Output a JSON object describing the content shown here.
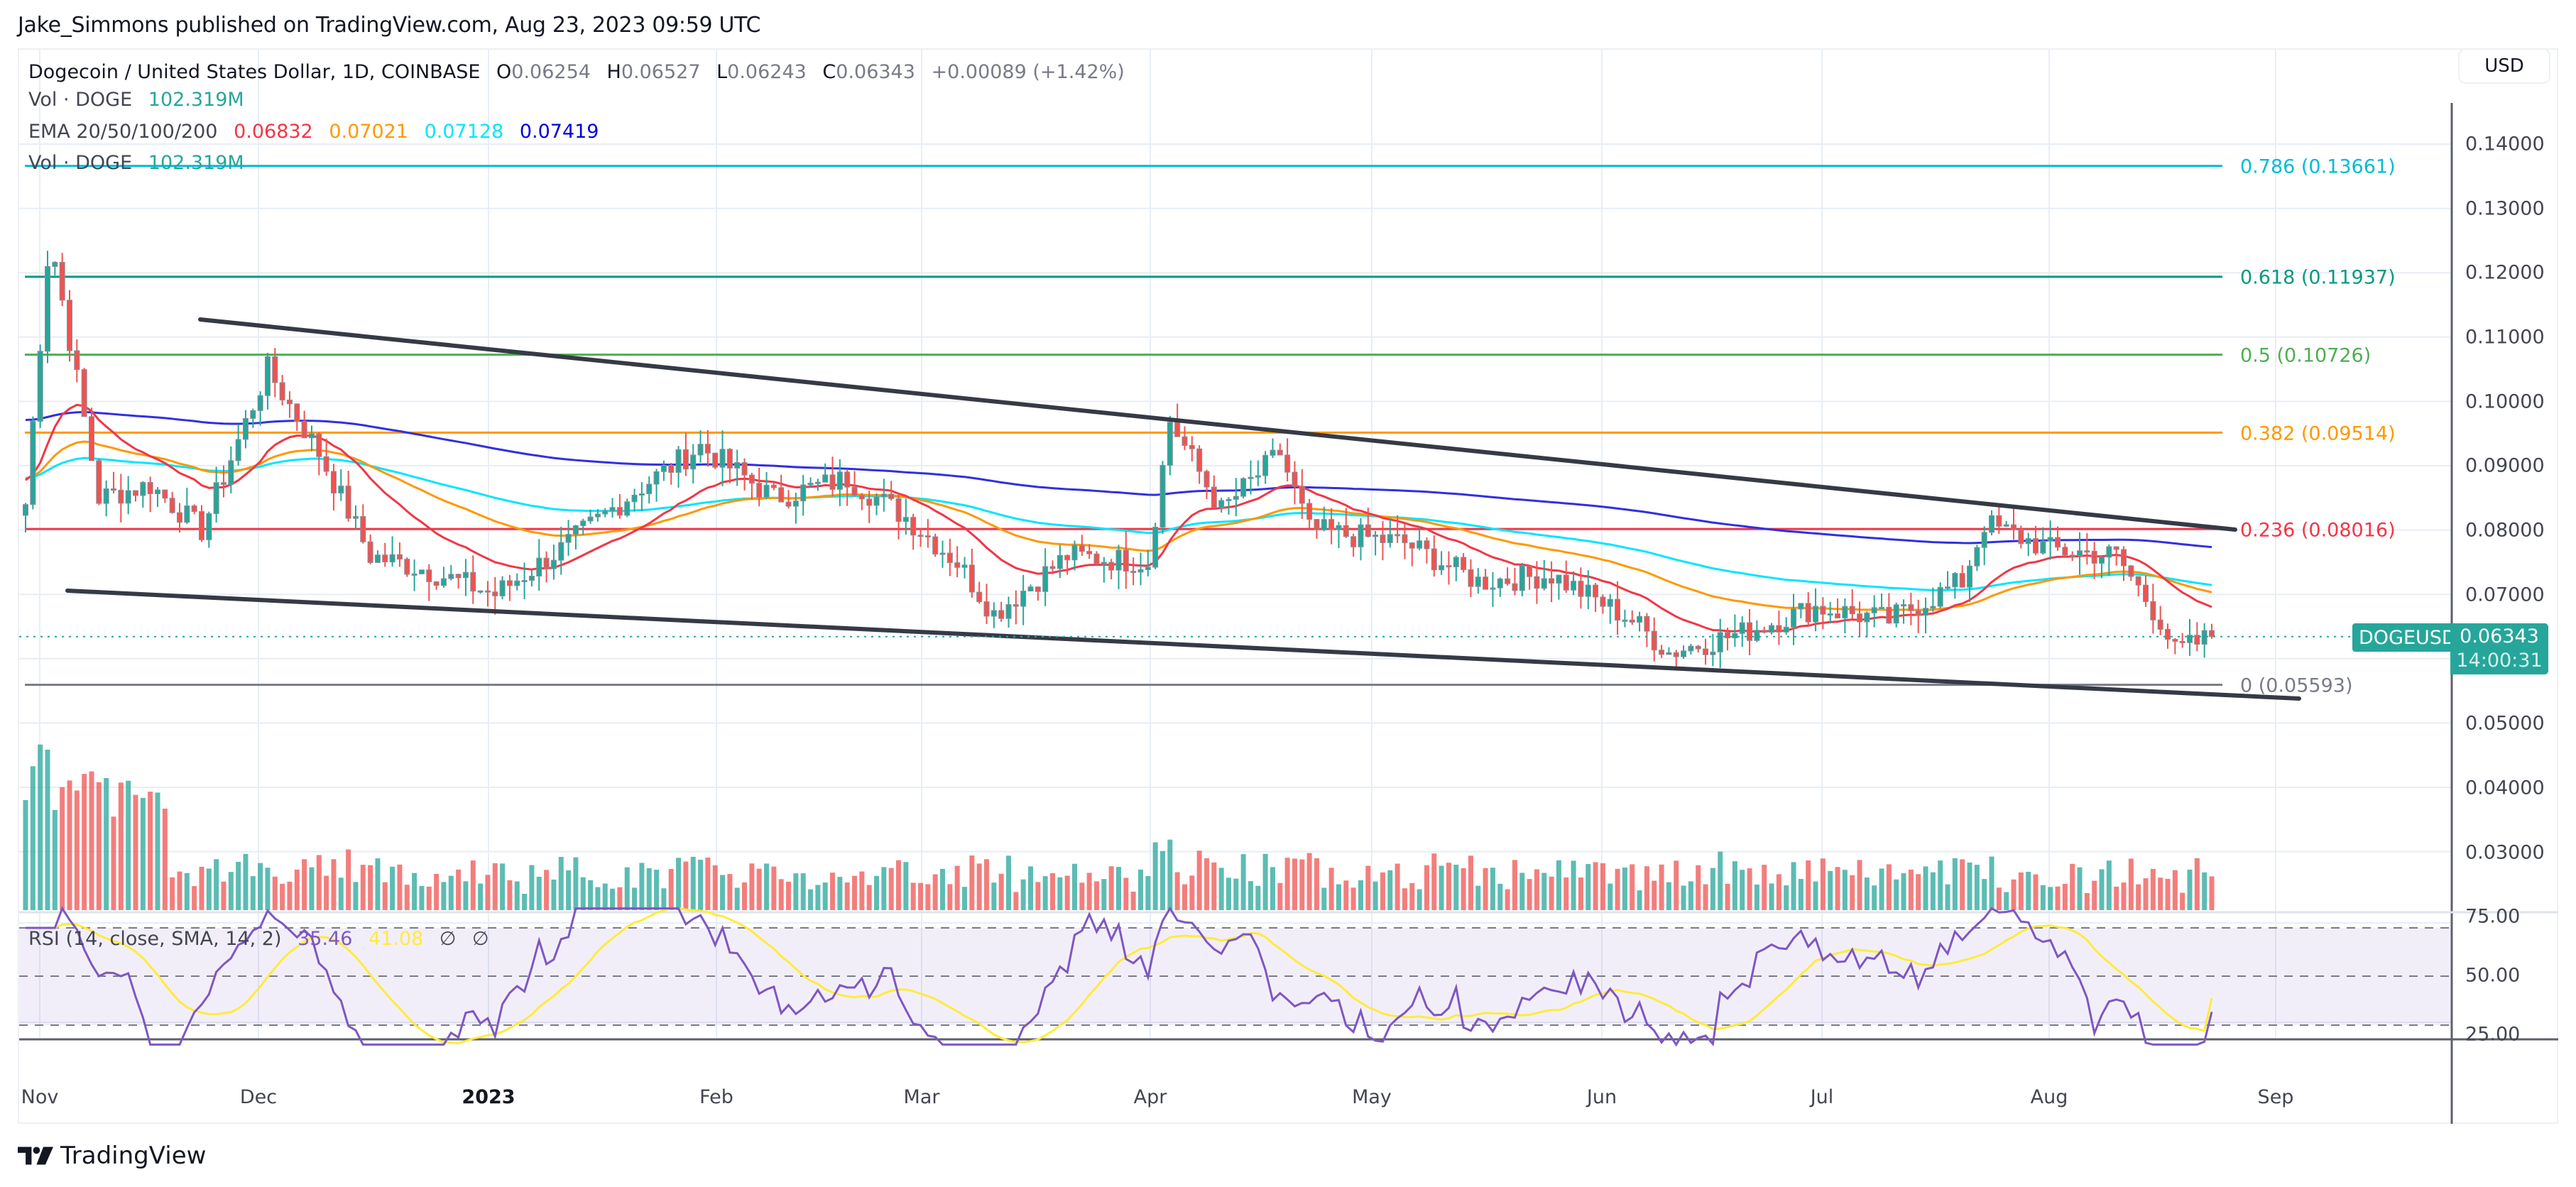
{
  "header": {
    "published": "Jake_Simmons published on TradingView.com, Aug 23, 2023 09:59 UTC"
  },
  "legend": {
    "symbol": "Dogecoin / United States Dollar, 1D, COINBASE",
    "ohlc": {
      "o_label": "O",
      "o": "0.06254",
      "h_label": "H",
      "h": "0.06527",
      "l_label": "L",
      "l": "0.06243",
      "c_label": "C",
      "c": "0.06343",
      "change": "+0.00089 (+1.42%)"
    },
    "vol1": {
      "label": "Vol · DOGE",
      "value": "102.319M"
    },
    "ema": {
      "label": "EMA 20/50/100/200",
      "v20": "0.06832",
      "v50": "0.07021",
      "v100": "0.07128",
      "v200": "0.07419"
    },
    "vol2": {
      "label": "Vol · DOGE",
      "value": "102.319M"
    },
    "rsi": {
      "label": "RSI (14, close, SMA, 14, 2)",
      "rsi": "35.46",
      "sma": "41.08",
      "n1": "∅",
      "n2": "∅"
    }
  },
  "currency_button": "USD",
  "price_axis": {
    "ticks": [
      "0.14000",
      "0.13000",
      "0.12000",
      "0.11000",
      "0.10000",
      "0.09000",
      "0.08000",
      "0.07000",
      "0.05000",
      "0.04000",
      "0.03000"
    ],
    "rsi_ticks": [
      "75.00",
      "50.00",
      "25.00"
    ]
  },
  "last_price": {
    "symbol": "DOGEUSD",
    "price": "0.06343",
    "countdown": "14:00:31"
  },
  "time_axis": {
    "labels": [
      {
        "text": "Nov",
        "bold": false
      },
      {
        "text": "Dec",
        "bold": false
      },
      {
        "text": "2023",
        "bold": true
      },
      {
        "text": "Feb",
        "bold": false
      },
      {
        "text": "Mar",
        "bold": false
      },
      {
        "text": "Apr",
        "bold": false
      },
      {
        "text": "May",
        "bold": false
      },
      {
        "text": "Jun",
        "bold": false
      },
      {
        "text": "Jul",
        "bold": false
      },
      {
        "text": "Aug",
        "bold": false
      },
      {
        "text": "Sep",
        "bold": false
      }
    ]
  },
  "fib_levels": [
    {
      "label": "0.786 (0.13661)",
      "level": 0.786,
      "price": 0.13661,
      "color": "#00bcd4"
    },
    {
      "label": "0.618 (0.11937)",
      "level": 0.618,
      "price": 0.11937,
      "color": "#089981"
    },
    {
      "label": "0.5 (0.10726)",
      "level": 0.5,
      "price": 0.10726,
      "color": "#4caf50"
    },
    {
      "label": "0.382 (0.09514)",
      "level": 0.382,
      "price": 0.09514,
      "color": "#ff9800"
    },
    {
      "label": "0.236 (0.08016)",
      "level": 0.236,
      "price": 0.08016,
      "color": "#f23645"
    },
    {
      "label": "0 (0.05593)",
      "level": 0,
      "price": 0.05593,
      "color": "#787b86"
    }
  ],
  "colors": {
    "up": "#26a69a",
    "down": "#ef5350",
    "ema20": "#f23645",
    "ema50": "#ff9800",
    "ema100": "#00e5ff",
    "ema200": "#3030e0",
    "rsi": "#7e57c2",
    "rsi_sma": "#ffeb3b",
    "trend": "#363a45"
  },
  "brand": "TradingView",
  "chart_data": {
    "type": "candlestick",
    "title": "Dogecoin / United States Dollar, 1D, COINBASE",
    "ylabel": "USD",
    "ylim": [
      0.022,
      0.146
    ],
    "x_range": [
      "2022-10-29",
      "2023-08-23"
    ],
    "x_ticks": [
      "Nov",
      "Dec",
      "2023",
      "Feb",
      "Mar",
      "Apr",
      "May",
      "Jun",
      "Jul",
      "Aug",
      "Sep"
    ],
    "last": {
      "open": 0.06254,
      "high": 0.06527,
      "low": 0.06243,
      "close": 0.06343,
      "change": 0.00089,
      "change_pct": 1.42
    },
    "monthly_closes_approx": {
      "2022-11-01": 0.128,
      "2022-11-08": 0.085,
      "2022-11-15": 0.087,
      "2022-11-22": 0.08,
      "2022-12-01": 0.105,
      "2022-12-08": 0.092,
      "2022-12-15": 0.076,
      "2022-12-22": 0.074,
      "2023-01-01": 0.07,
      "2023-01-10": 0.077,
      "2023-01-20": 0.086,
      "2023-01-29": 0.093,
      "2023-02-08": 0.085,
      "2023-02-18": 0.088,
      "2023-02-26": 0.082,
      "2023-03-05": 0.075,
      "2023-03-10": 0.067,
      "2023-03-20": 0.076,
      "2023-03-31": 0.075,
      "2023-04-03": 0.097,
      "2023-04-10": 0.083,
      "2023-04-18": 0.092,
      "2023-04-22": 0.08,
      "2023-05-05": 0.078,
      "2023-05-15": 0.072,
      "2023-05-25": 0.073,
      "2023-06-05": 0.066,
      "2023-06-10": 0.061,
      "2023-06-20": 0.064,
      "2023-06-30": 0.068,
      "2023-07-10": 0.066,
      "2023-07-20": 0.072,
      "2023-07-23": 0.081,
      "2023-08-01": 0.077,
      "2023-08-10": 0.076,
      "2023-08-16": 0.066,
      "2023-08-18": 0.061,
      "2023-08-23": 0.0634
    },
    "ema_last": {
      "ema20": 0.06832,
      "ema50": 0.07021,
      "ema100": 0.07128,
      "ema200": 0.07419
    },
    "fibonacci": [
      {
        "level": 0,
        "price": 0.05593
      },
      {
        "level": 0.236,
        "price": 0.08016
      },
      {
        "level": 0.382,
        "price": 0.09514
      },
      {
        "level": 0.5,
        "price": 0.10726
      },
      {
        "level": 0.618,
        "price": 0.11937
      },
      {
        "level": 0.786,
        "price": 0.13661
      }
    ],
    "trendlines": [
      {
        "name": "upper",
        "from": [
          "2022-11-24",
          0.113
        ],
        "to": [
          "2023-08-26",
          0.0802
        ]
      },
      {
        "name": "lower",
        "from": [
          "2022-11-06",
          0.0706
        ],
        "to": [
          "2023-09-01",
          0.0542
        ]
      }
    ],
    "volume_last": "102.319M",
    "rsi": {
      "period": 14,
      "value": 35.46,
      "sma": 41.08,
      "bands": [
        30,
        50,
        70
      ],
      "axis_ticks": [
        25,
        50,
        75
      ]
    }
  }
}
